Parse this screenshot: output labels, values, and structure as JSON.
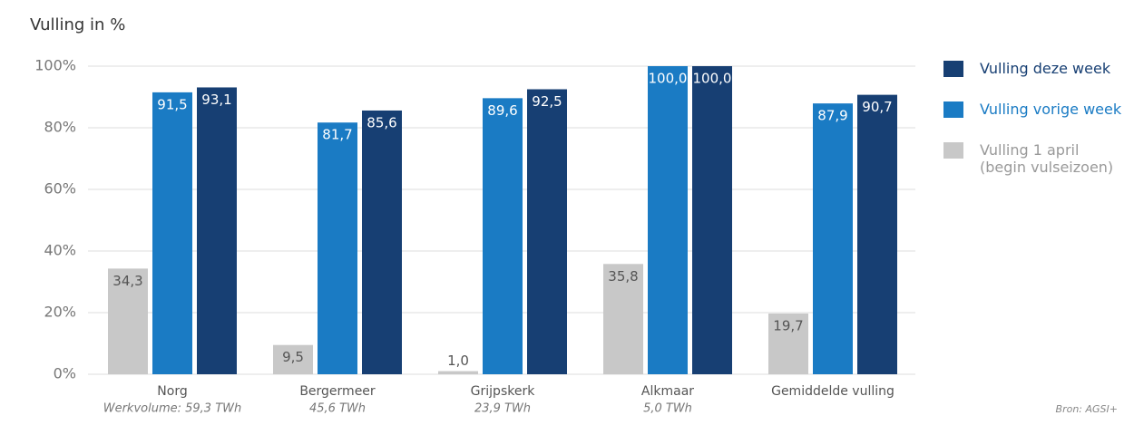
{
  "chart_data": {
    "type": "bar",
    "title": "Vulling in %",
    "source": "Bron: AGSI+",
    "categories": [
      "Norg",
      "Bergermeer",
      "Grijpskerk",
      "Alkmaar",
      "Gemiddelde vulling"
    ],
    "category_notes": [
      "Werkvolume: 59,3 TWh",
      "45,6 TWh",
      "23,9 TWh",
      "5,0 TWh",
      null
    ],
    "series": [
      {
        "name": "Vulling 1 april (begin vulseizoen)",
        "color": "#c8c8c8",
        "label_color": "#555555",
        "values": [
          34.3,
          9.5,
          1.0,
          35.8,
          19.7
        ],
        "value_labels": [
          "34,3",
          "9,5",
          "1,0",
          "35,8",
          "19,7"
        ]
      },
      {
        "name": "Vulling vorige week",
        "color": "#1a7bc4",
        "label_color": "#ffffff",
        "values": [
          91.5,
          81.7,
          89.6,
          100.0,
          87.9
        ],
        "value_labels": [
          "91,5",
          "81,7",
          "89,6",
          "100,0",
          "87,9"
        ]
      },
      {
        "name": "Vulling deze week",
        "color": "#173f73",
        "label_color": "#ffffff",
        "values": [
          93.1,
          85.6,
          92.5,
          100.0,
          90.7
        ],
        "value_labels": [
          "93,1",
          "85,6",
          "92,5",
          "100,0",
          "90,7"
        ]
      }
    ],
    "ylim": [
      0,
      100
    ],
    "yticks": [
      {
        "value": 0,
        "label": "0%"
      },
      {
        "value": 20,
        "label": "20%"
      },
      {
        "value": 40,
        "label": "40%"
      },
      {
        "value": 60,
        "label": "60%"
      },
      {
        "value": 80,
        "label": "80%"
      },
      {
        "value": 100,
        "label": "100%"
      }
    ],
    "grid": true
  }
}
